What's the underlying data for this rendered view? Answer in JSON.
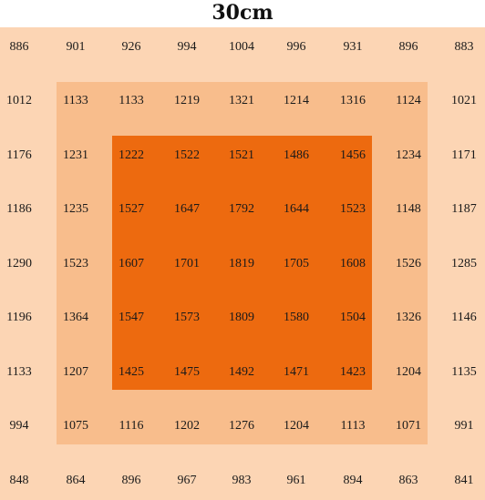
{
  "title": "30cm",
  "colors": {
    "outer": "#fcd5b4",
    "middle": "#f8bd8c",
    "inner": "#ed6a0f",
    "text": "#1a1a1a"
  },
  "grid": [
    [
      886,
      901,
      926,
      994,
      1004,
      996,
      931,
      896,
      883
    ],
    [
      1012,
      1133,
      1133,
      1219,
      1321,
      1214,
      1316,
      1124,
      1021
    ],
    [
      1176,
      1231,
      1222,
      1522,
      1521,
      1486,
      1456,
      1234,
      1171
    ],
    [
      1186,
      1235,
      1527,
      1647,
      1792,
      1644,
      1523,
      1148,
      1187
    ],
    [
      1290,
      1523,
      1607,
      1701,
      1819,
      1705,
      1608,
      1526,
      1285
    ],
    [
      1196,
      1364,
      1547,
      1573,
      1809,
      1580,
      1504,
      1326,
      1146
    ],
    [
      1133,
      1207,
      1425,
      1475,
      1492,
      1471,
      1423,
      1204,
      1135
    ],
    [
      994,
      1075,
      1116,
      1202,
      1276,
      1204,
      1113,
      1071,
      991
    ],
    [
      848,
      864,
      896,
      967,
      983,
      961,
      894,
      863,
      841
    ]
  ]
}
